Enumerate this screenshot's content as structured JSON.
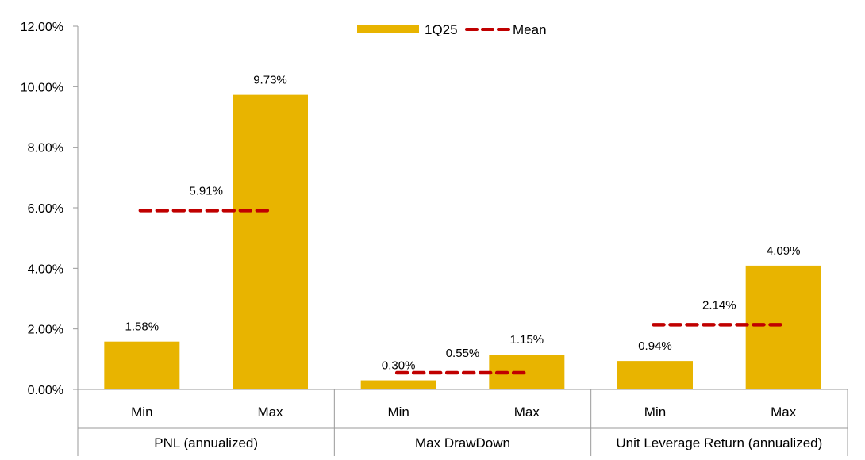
{
  "chart_data": {
    "type": "bar",
    "title": "",
    "xlabel": "",
    "ylabel": "",
    "ylim": [
      0,
      12
    ],
    "yticks": [
      "0.00%",
      "2.00%",
      "4.00%",
      "6.00%",
      "8.00%",
      "10.00%",
      "12.00%"
    ],
    "grid": false,
    "legend": {
      "position": "top-center",
      "entries": [
        {
          "name": "1Q25",
          "kind": "bar",
          "color": "#E8B400"
        },
        {
          "name": "Mean",
          "kind": "dashed-line",
          "color": "#C00000"
        }
      ]
    },
    "groups": [
      {
        "label": "PNL (annualized)",
        "bars": [
          {
            "category": "Min",
            "value": 1.58,
            "label": "1.58%"
          },
          {
            "category": "Max",
            "value": 9.73,
            "label": "9.73%"
          }
        ],
        "mean": {
          "value": 5.91,
          "label": "5.91%"
        }
      },
      {
        "label": "Max DrawDown",
        "bars": [
          {
            "category": "Min",
            "value": 0.3,
            "label": "0.30%"
          },
          {
            "category": "Max",
            "value": 1.15,
            "label": "1.15%"
          }
        ],
        "mean": {
          "value": 0.55,
          "label": "0.55%"
        }
      },
      {
        "label": "Unit Leverage Return (annualized)",
        "bars": [
          {
            "category": "Min",
            "value": 0.94,
            "label": "0.94%"
          },
          {
            "category": "Max",
            "value": 4.09,
            "label": "4.09%"
          }
        ],
        "mean": {
          "value": 2.14,
          "label": "2.14%"
        }
      }
    ]
  }
}
